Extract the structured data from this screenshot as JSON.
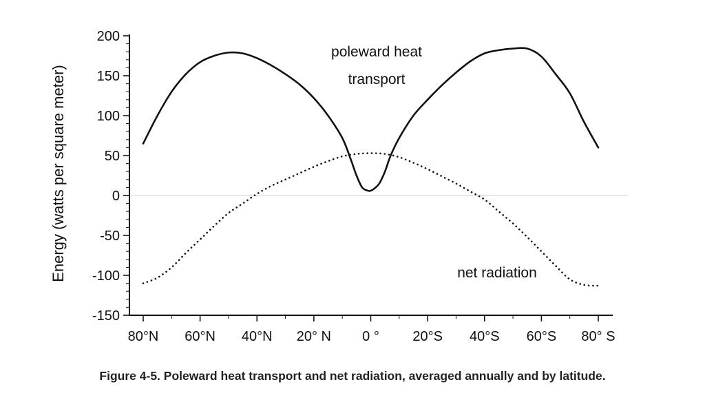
{
  "chart_data": {
    "type": "line",
    "ylabel": "Energy (watts per square meter)",
    "ylim": [
      -150,
      200
    ],
    "yticks": [
      -150,
      -100,
      -50,
      0,
      50,
      100,
      150,
      200
    ],
    "ytick_labels": [
      "-150",
      "-100",
      "-50",
      "0",
      "50",
      "100",
      "150",
      "200"
    ],
    "xlim": [
      -80,
      80
    ],
    "xticks": [
      -80,
      -60,
      -40,
      -20,
      0,
      20,
      40,
      60,
      80
    ],
    "xtick_labels": [
      "80°N",
      "60°N",
      "40°N",
      "20° N",
      "0 °",
      "20°S",
      "40°S",
      "60°S",
      "80° S"
    ],
    "zero_line": true,
    "series": [
      {
        "name": "poleward heat transport",
        "style": "solid",
        "color": "#111111",
        "x": [
          -80,
          -75,
          -70,
          -65,
          -60,
          -55,
          -50,
          -45,
          -40,
          -35,
          -30,
          -25,
          -20,
          -15,
          -10,
          -7,
          -5,
          -3,
          -1,
          0,
          1,
          3,
          5,
          7,
          10,
          15,
          20,
          25,
          30,
          35,
          40,
          45,
          50,
          55,
          60,
          65,
          70,
          75,
          80
        ],
        "y": [
          65,
          100,
          130,
          152,
          167,
          175,
          179,
          178,
          172,
          163,
          152,
          139,
          122,
          100,
          72,
          45,
          25,
          10,
          6,
          6,
          8,
          15,
          30,
          50,
          72,
          100,
          120,
          138,
          154,
          168,
          178,
          182,
          184,
          184,
          174,
          152,
          128,
          92,
          60
        ]
      },
      {
        "name": "net radiation",
        "style": "dotted",
        "color": "#111111",
        "x": [
          -80,
          -75,
          -70,
          -65,
          -60,
          -55,
          -50,
          -45,
          -40,
          -35,
          -30,
          -25,
          -20,
          -15,
          -10,
          -5,
          0,
          5,
          10,
          15,
          20,
          25,
          30,
          35,
          40,
          45,
          50,
          55,
          60,
          65,
          70,
          75,
          80
        ],
        "y": [
          -110,
          -103,
          -90,
          -72,
          -55,
          -38,
          -22,
          -10,
          2,
          12,
          20,
          28,
          36,
          43,
          49,
          52,
          53,
          52,
          48,
          41,
          33,
          24,
          15,
          5,
          -5,
          -20,
          -35,
          -52,
          -70,
          -88,
          -105,
          -112,
          -113
        ]
      }
    ],
    "annotations": [
      "poleward heat",
      "transport",
      "net radiation"
    ]
  },
  "caption": "Figure 4-5.  Poleward heat transport and net radiation, averaged annually and by latitude."
}
